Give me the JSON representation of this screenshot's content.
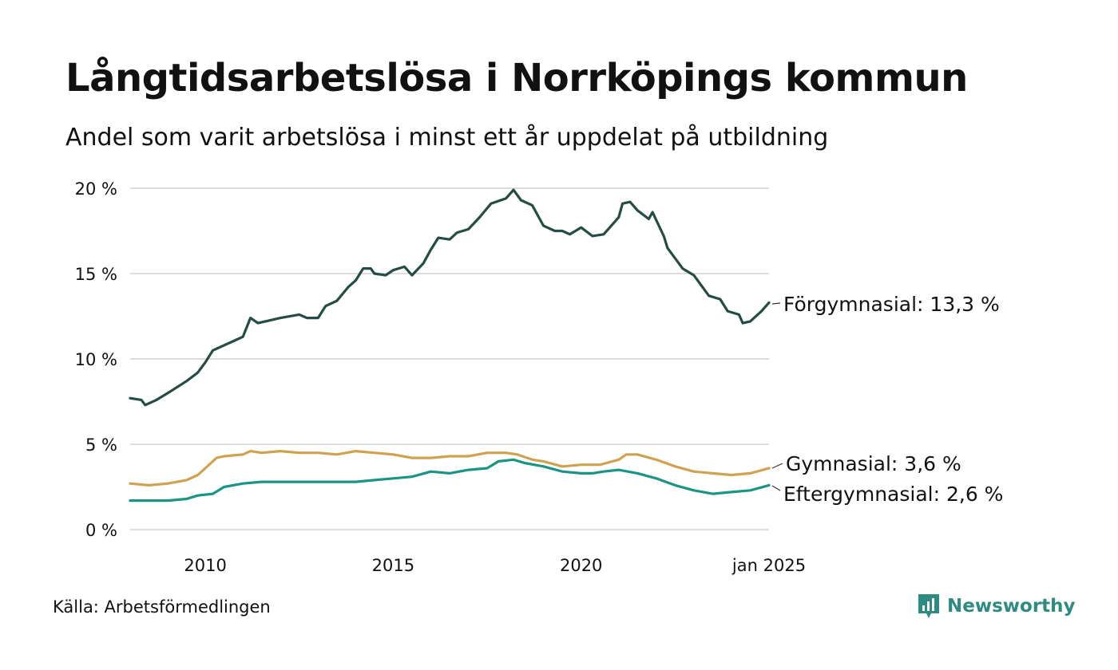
{
  "header": {
    "title": "Långtidsarbetslösa i Norrköpings kommun",
    "subtitle": "Andel som varit arbetslösa i minst ett år uppdelat på utbildning"
  },
  "footer": {
    "source": "Källa: Arbetsförmedlingen",
    "brand": "Newsworthy",
    "brand_color": "#2e8b82"
  },
  "chart_data": {
    "type": "line",
    "title": "Långtidsarbetslösa i Norrköpings kommun",
    "xlabel": "",
    "ylabel": "",
    "xlim": [
      2008.0,
      2025.0
    ],
    "ylim": [
      0,
      20
    ],
    "grid": true,
    "y_ticks": [
      {
        "value": 0,
        "label": "0 %"
      },
      {
        "value": 5,
        "label": "5 %"
      },
      {
        "value": 10,
        "label": "10 %"
      },
      {
        "value": 15,
        "label": "15 %"
      },
      {
        "value": 20,
        "label": "20 %"
      }
    ],
    "x_ticks": [
      {
        "value": 2010,
        "label": "2010"
      },
      {
        "value": 2015,
        "label": "2015"
      },
      {
        "value": 2020,
        "label": "2020"
      },
      {
        "value": 2025,
        "label": "jan 2025"
      }
    ],
    "series": [
      {
        "name": "Förgymnasial",
        "label": "Förgymnasial: 13,3 %",
        "color": "#234c45",
        "points": [
          [
            2008.0,
            7.7
          ],
          [
            2008.3,
            7.6
          ],
          [
            2008.4,
            7.3
          ],
          [
            2008.7,
            7.6
          ],
          [
            2009.0,
            8.0
          ],
          [
            2009.5,
            8.7
          ],
          [
            2009.8,
            9.2
          ],
          [
            2010.0,
            9.8
          ],
          [
            2010.2,
            10.5
          ],
          [
            2010.5,
            10.8
          ],
          [
            2010.8,
            11.1
          ],
          [
            2011.0,
            11.3
          ],
          [
            2011.2,
            12.4
          ],
          [
            2011.4,
            12.1
          ],
          [
            2011.6,
            12.2
          ],
          [
            2012.0,
            12.4
          ],
          [
            2012.5,
            12.6
          ],
          [
            2012.7,
            12.4
          ],
          [
            2013.0,
            12.4
          ],
          [
            2013.2,
            13.1
          ],
          [
            2013.5,
            13.4
          ],
          [
            2013.8,
            14.2
          ],
          [
            2014.0,
            14.6
          ],
          [
            2014.2,
            15.3
          ],
          [
            2014.4,
            15.3
          ],
          [
            2014.5,
            15.0
          ],
          [
            2014.8,
            14.9
          ],
          [
            2015.0,
            15.2
          ],
          [
            2015.3,
            15.4
          ],
          [
            2015.5,
            14.9
          ],
          [
            2015.8,
            15.6
          ],
          [
            2016.0,
            16.4
          ],
          [
            2016.2,
            17.1
          ],
          [
            2016.5,
            17.0
          ],
          [
            2016.7,
            17.4
          ],
          [
            2017.0,
            17.6
          ],
          [
            2017.3,
            18.3
          ],
          [
            2017.6,
            19.1
          ],
          [
            2018.0,
            19.4
          ],
          [
            2018.2,
            19.9
          ],
          [
            2018.4,
            19.3
          ],
          [
            2018.7,
            19.0
          ],
          [
            2019.0,
            17.8
          ],
          [
            2019.3,
            17.5
          ],
          [
            2019.5,
            17.5
          ],
          [
            2019.7,
            17.3
          ],
          [
            2020.0,
            17.7
          ],
          [
            2020.3,
            17.2
          ],
          [
            2020.6,
            17.3
          ],
          [
            2020.8,
            17.8
          ],
          [
            2021.0,
            18.3
          ],
          [
            2021.1,
            19.1
          ],
          [
            2021.3,
            19.2
          ],
          [
            2021.5,
            18.7
          ],
          [
            2021.8,
            18.2
          ],
          [
            2021.9,
            18.6
          ],
          [
            2022.2,
            17.2
          ],
          [
            2022.3,
            16.5
          ],
          [
            2022.7,
            15.3
          ],
          [
            2023.0,
            14.9
          ],
          [
            2023.2,
            14.3
          ],
          [
            2023.4,
            13.7
          ],
          [
            2023.7,
            13.5
          ],
          [
            2023.9,
            12.8
          ],
          [
            2024.2,
            12.6
          ],
          [
            2024.3,
            12.1
          ],
          [
            2024.5,
            12.2
          ],
          [
            2024.8,
            12.8
          ],
          [
            2025.0,
            13.3
          ]
        ]
      },
      {
        "name": "Gymnasial",
        "label": "Gymnasial:  3,6 %",
        "color": "#cfa250",
        "points": [
          [
            2008.0,
            2.7
          ],
          [
            2008.5,
            2.6
          ],
          [
            2009.0,
            2.7
          ],
          [
            2009.5,
            2.9
          ],
          [
            2009.8,
            3.2
          ],
          [
            2010.0,
            3.6
          ],
          [
            2010.3,
            4.2
          ],
          [
            2010.5,
            4.3
          ],
          [
            2011.0,
            4.4
          ],
          [
            2011.2,
            4.6
          ],
          [
            2011.5,
            4.5
          ],
          [
            2012.0,
            4.6
          ],
          [
            2012.5,
            4.5
          ],
          [
            2013.0,
            4.5
          ],
          [
            2013.5,
            4.4
          ],
          [
            2014.0,
            4.6
          ],
          [
            2014.5,
            4.5
          ],
          [
            2015.0,
            4.4
          ],
          [
            2015.5,
            4.2
          ],
          [
            2016.0,
            4.2
          ],
          [
            2016.5,
            4.3
          ],
          [
            2017.0,
            4.3
          ],
          [
            2017.5,
            4.5
          ],
          [
            2018.0,
            4.5
          ],
          [
            2018.3,
            4.4
          ],
          [
            2018.7,
            4.1
          ],
          [
            2019.0,
            4.0
          ],
          [
            2019.5,
            3.7
          ],
          [
            2020.0,
            3.8
          ],
          [
            2020.5,
            3.8
          ],
          [
            2021.0,
            4.1
          ],
          [
            2021.2,
            4.4
          ],
          [
            2021.5,
            4.4
          ],
          [
            2022.0,
            4.1
          ],
          [
            2022.5,
            3.7
          ],
          [
            2023.0,
            3.4
          ],
          [
            2023.5,
            3.3
          ],
          [
            2024.0,
            3.2
          ],
          [
            2024.5,
            3.3
          ],
          [
            2025.0,
            3.6
          ]
        ]
      },
      {
        "name": "Eftergymnasial",
        "label": "Eftergymnasial:  2,6 %",
        "color": "#1a9484",
        "points": [
          [
            2008.0,
            1.7
          ],
          [
            2008.5,
            1.7
          ],
          [
            2009.0,
            1.7
          ],
          [
            2009.5,
            1.8
          ],
          [
            2009.8,
            2.0
          ],
          [
            2010.2,
            2.1
          ],
          [
            2010.5,
            2.5
          ],
          [
            2011.0,
            2.7
          ],
          [
            2011.5,
            2.8
          ],
          [
            2012.0,
            2.8
          ],
          [
            2012.5,
            2.8
          ],
          [
            2013.0,
            2.8
          ],
          [
            2013.5,
            2.8
          ],
          [
            2014.0,
            2.8
          ],
          [
            2014.5,
            2.9
          ],
          [
            2015.0,
            3.0
          ],
          [
            2015.5,
            3.1
          ],
          [
            2016.0,
            3.4
          ],
          [
            2016.5,
            3.3
          ],
          [
            2017.0,
            3.5
          ],
          [
            2017.5,
            3.6
          ],
          [
            2017.8,
            4.0
          ],
          [
            2018.2,
            4.1
          ],
          [
            2018.5,
            3.9
          ],
          [
            2019.0,
            3.7
          ],
          [
            2019.5,
            3.4
          ],
          [
            2020.0,
            3.3
          ],
          [
            2020.3,
            3.3
          ],
          [
            2020.6,
            3.4
          ],
          [
            2021.0,
            3.5
          ],
          [
            2021.5,
            3.3
          ],
          [
            2022.0,
            3.0
          ],
          [
            2022.5,
            2.6
          ],
          [
            2023.0,
            2.3
          ],
          [
            2023.5,
            2.1
          ],
          [
            2024.0,
            2.2
          ],
          [
            2024.5,
            2.3
          ],
          [
            2025.0,
            2.6
          ]
        ]
      }
    ]
  }
}
